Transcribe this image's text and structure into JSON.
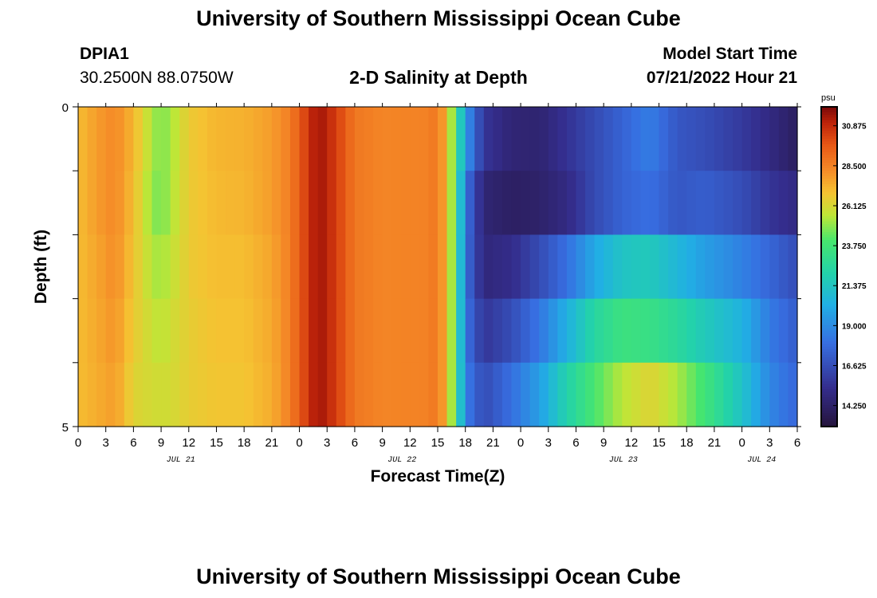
{
  "header": {
    "title": "University of Southern Mississippi Ocean Cube",
    "station": "DPIA1",
    "coords": "30.2500N  88.0750W",
    "subtitle": "2-D Salinity at Depth",
    "model_start_label": "Model Start Time",
    "model_start_value": "07/21/2022 Hour 21"
  },
  "footer": {
    "title": "University of Southern Mississippi Ocean Cube"
  },
  "chart_data": {
    "type": "heatmap",
    "xlabel": "Forecast Time(Z)",
    "ylabel": "Depth (ft)",
    "units": "psu",
    "x_tick_labels": [
      "0",
      "3",
      "6",
      "9",
      "12",
      "15",
      "18",
      "21",
      "0",
      "3",
      "6",
      "9",
      "12",
      "15",
      "18",
      "21",
      "0",
      "3",
      "6",
      "9",
      "12",
      "15",
      "18",
      "21",
      "0",
      "3",
      "6"
    ],
    "x_date_labels": [
      {
        "text": "JUL 21",
        "tick_index": 4
      },
      {
        "text": "JUL 22",
        "tick_index": 12
      },
      {
        "text": "JUL 23",
        "tick_index": 20
      },
      {
        "text": "JUL 24",
        "tick_index": 25
      }
    ],
    "y_tick_labels": [
      "0",
      "5"
    ],
    "ylim": [
      0,
      5
    ],
    "depth_levels": 5,
    "colorbar_ticks": [
      "30.875",
      "28.500",
      "26.125",
      "23.750",
      "21.375",
      "19.000",
      "16.625",
      "14.250"
    ],
    "colorbar_range": [
      13.0,
      32.0
    ],
    "hours": 78,
    "profiles": [
      {
        "hour": 0,
        "values": [
          27.0,
          27.0,
          27.0,
          27.0,
          27.0
        ]
      },
      {
        "hour": 2,
        "values": [
          27.8,
          27.8,
          27.6,
          27.5,
          27.4
        ]
      },
      {
        "hour": 4,
        "values": [
          28.3,
          28.3,
          28.2,
          28.0,
          27.8
        ]
      },
      {
        "hour": 6,
        "values": [
          27.2,
          27.0,
          26.8,
          26.6,
          26.3
        ]
      },
      {
        "hour": 8,
        "values": [
          25.3,
          25.0,
          25.4,
          25.8,
          26.0
        ]
      },
      {
        "hour": 9,
        "values": [
          24.7,
          24.6,
          25.2,
          25.5,
          25.9
        ]
      },
      {
        "hour": 10,
        "values": [
          25.2,
          25.3,
          25.6,
          25.9,
          26.0
        ]
      },
      {
        "hour": 12,
        "values": [
          26.6,
          26.6,
          26.6,
          26.5,
          26.5
        ]
      },
      {
        "hour": 15,
        "values": [
          27.2,
          27.1,
          27.0,
          26.9,
          26.8
        ]
      },
      {
        "hour": 18,
        "values": [
          27.3,
          27.2,
          27.0,
          26.9,
          26.8
        ]
      },
      {
        "hour": 21,
        "values": [
          27.8,
          27.8,
          27.6,
          27.5,
          27.4
        ]
      },
      {
        "hour": 23,
        "values": [
          28.6,
          28.6,
          28.6,
          28.6,
          28.6
        ]
      },
      {
        "hour": 25,
        "values": [
          30.6,
          30.6,
          30.6,
          30.6,
          30.6
        ]
      },
      {
        "hour": 26,
        "values": [
          31.6,
          31.6,
          31.6,
          31.6,
          31.6
        ]
      },
      {
        "hour": 28,
        "values": [
          30.4,
          30.4,
          30.4,
          30.4,
          30.4
        ]
      },
      {
        "hour": 30,
        "values": [
          28.8,
          28.8,
          28.8,
          28.8,
          28.8
        ]
      },
      {
        "hour": 33,
        "values": [
          28.4,
          28.4,
          28.4,
          28.4,
          28.4
        ]
      },
      {
        "hour": 38,
        "values": [
          28.5,
          28.5,
          28.5,
          28.5,
          28.5
        ]
      },
      {
        "hour": 39,
        "values": [
          28.9,
          28.9,
          28.9,
          28.9,
          28.9
        ]
      },
      {
        "hour": 40,
        "values": [
          27.0,
          27.0,
          27.0,
          27.0,
          27.0
        ]
      },
      {
        "hour": 41,
        "values": [
          23.5,
          23.5,
          23.5,
          23.5,
          23.5
        ]
      },
      {
        "hour": 42,
        "values": [
          19.5,
          18.2,
          18.0,
          18.2,
          18.5
        ]
      },
      {
        "hour": 44,
        "values": [
          15.6,
          14.6,
          14.8,
          15.6,
          16.5
        ]
      },
      {
        "hour": 47,
        "values": [
          14.6,
          14.1,
          15.2,
          16.6,
          18.0
        ]
      },
      {
        "hour": 50,
        "values": [
          14.5,
          14.3,
          16.5,
          18.2,
          19.6
        ]
      },
      {
        "hour": 53,
        "values": [
          15.5,
          15.0,
          18.0,
          20.3,
          22.1
        ]
      },
      {
        "hour": 56,
        "values": [
          16.5,
          16.5,
          20.0,
          22.4,
          24.0
        ]
      },
      {
        "hour": 59,
        "values": [
          17.5,
          17.5,
          21.3,
          23.5,
          25.5
        ]
      },
      {
        "hour": 62,
        "values": [
          18.5,
          18.0,
          21.6,
          23.3,
          26.3
        ]
      },
      {
        "hour": 65,
        "values": [
          17.0,
          17.0,
          20.6,
          22.6,
          25.3
        ]
      },
      {
        "hour": 68,
        "values": [
          16.6,
          17.3,
          19.6,
          21.6,
          23.7
        ]
      },
      {
        "hour": 72,
        "values": [
          15.8,
          16.6,
          18.6,
          20.4,
          21.2
        ]
      },
      {
        "hour": 75,
        "values": [
          15.0,
          15.6,
          17.6,
          18.4,
          18.8
        ]
      },
      {
        "hour": 78,
        "values": [
          14.0,
          15.0,
          16.6,
          17.2,
          17.6
        ]
      }
    ]
  }
}
